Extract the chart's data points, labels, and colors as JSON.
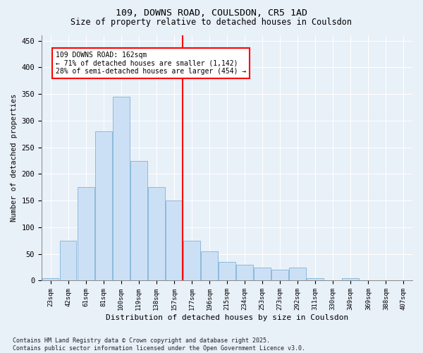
{
  "title": "109, DOWNS ROAD, COULSDON, CR5 1AD",
  "subtitle": "Size of property relative to detached houses in Coulsdon",
  "xlabel": "Distribution of detached houses by size in Coulsdon",
  "ylabel": "Number of detached properties",
  "bar_labels": [
    "23sqm",
    "42sqm",
    "61sqm",
    "81sqm",
    "100sqm",
    "119sqm",
    "138sqm",
    "157sqm",
    "177sqm",
    "196sqm",
    "215sqm",
    "234sqm",
    "253sqm",
    "273sqm",
    "292sqm",
    "311sqm",
    "330sqm",
    "349sqm",
    "369sqm",
    "388sqm",
    "407sqm"
  ],
  "bar_values": [
    5,
    75,
    175,
    280,
    345,
    225,
    175,
    150,
    75,
    55,
    35,
    30,
    25,
    20,
    25,
    5,
    0,
    5,
    0,
    0,
    0
  ],
  "bar_color": "#cce0f5",
  "bar_edge_color": "#7fb3d9",
  "vline_index": 7,
  "vline_color": "red",
  "annotation_title": "109 DOWNS ROAD: 162sqm",
  "annotation_line1": "← 71% of detached houses are smaller (1,142)",
  "annotation_line2": "28% of semi-detached houses are larger (454) →",
  "annotation_box_color": "red",
  "annotation_fill": "white",
  "ylim": [
    0,
    460
  ],
  "yticks": [
    0,
    50,
    100,
    150,
    200,
    250,
    300,
    350,
    400,
    450
  ],
  "footer": "Contains HM Land Registry data © Crown copyright and database right 2025.\nContains public sector information licensed under the Open Government Licence v3.0.",
  "bg_color": "#e8f0f8",
  "plot_bg_color": "#e8f0f8",
  "grid_color": "white",
  "title_fontsize": 9.5,
  "subtitle_fontsize": 8.5
}
